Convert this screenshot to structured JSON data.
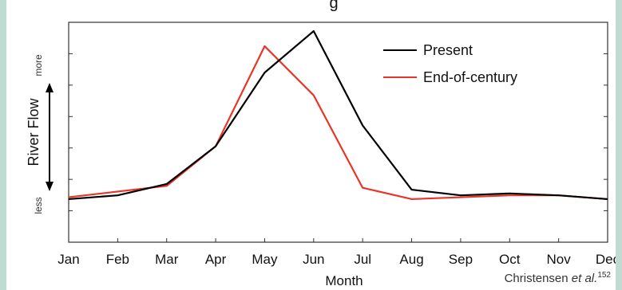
{
  "title_partial": "g",
  "credit": {
    "name": "Christensen",
    "etal": "et al.",
    "ref": "152"
  },
  "chart_data": {
    "type": "line",
    "categories": [
      "Jan",
      "Feb",
      "Mar",
      "Apr",
      "May",
      "Jun",
      "Jul",
      "Aug",
      "Sep",
      "Oct",
      "Nov",
      "Dec"
    ],
    "xlabel": "Month",
    "ylabel": "River Flow",
    "y_top_label": "more",
    "y_bottom_label": "less",
    "y_ticks_labeled": false,
    "ylim": [
      0,
      100
    ],
    "legend_position": "top-right",
    "series": [
      {
        "name": "Present",
        "color": "#000000",
        "values": [
          11,
          13,
          19,
          39,
          78,
          100,
          50,
          16,
          13,
          14,
          13,
          11
        ]
      },
      {
        "name": "End-of-century",
        "color": "#e8352a",
        "values": [
          12,
          15,
          18,
          39,
          92,
          66,
          17,
          11,
          12,
          13,
          13,
          11
        ]
      }
    ]
  }
}
